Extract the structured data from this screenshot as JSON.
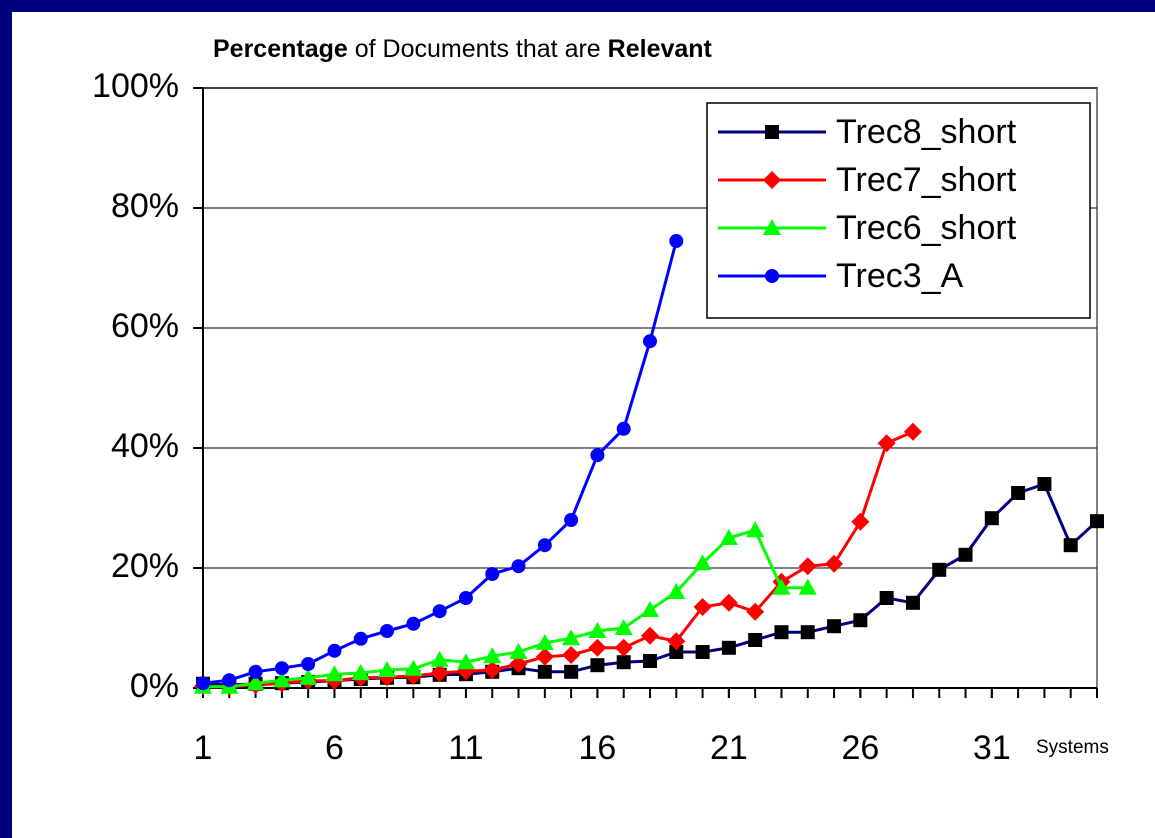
{
  "chart_data": {
    "type": "line",
    "title": [
      "Percentage",
      "of Documents that are",
      "Relevant"
    ],
    "x_label": "Systems",
    "x": [
      1,
      2,
      3,
      4,
      5,
      6,
      7,
      8,
      9,
      10,
      11,
      12,
      13,
      14,
      15,
      16,
      17,
      18,
      19,
      20,
      21,
      22,
      23,
      24,
      25,
      26,
      27,
      28,
      29,
      30,
      31,
      32,
      33,
      34,
      35
    ],
    "xlim": [
      1,
      35
    ],
    "xticks": [
      1,
      6,
      11,
      16,
      21,
      26,
      31
    ],
    "ylim": [
      0,
      100
    ],
    "yticks": [
      {
        "value": 0,
        "label": "0%"
      },
      {
        "value": 20,
        "label": "20%"
      },
      {
        "value": 40,
        "label": "40%"
      },
      {
        "value": 60,
        "label": "60%"
      },
      {
        "value": 80,
        "label": "80%"
      },
      {
        "value": 100,
        "label": "100%"
      }
    ],
    "grid": true,
    "legend": "top right",
    "series": [
      {
        "name": "Trec8_short",
        "color": "#000080",
        "marker": "square",
        "marker_color": "#000000",
        "values": [
          0.7,
          0.5,
          0.7,
          0.8,
          1.0,
          1.2,
          1.5,
          1.7,
          1.8,
          2.2,
          2.3,
          2.7,
          3.3,
          2.7,
          2.7,
          3.8,
          4.3,
          4.5,
          6.0,
          6.0,
          6.7,
          8.0,
          9.3,
          9.3,
          10.3,
          11.3,
          15.0,
          14.2,
          19.7,
          22.2,
          28.3,
          32.5,
          34.0,
          23.8,
          27.8
        ]
      },
      {
        "name": "Trec7_short",
        "color": "#ff0000",
        "marker": "diamond",
        "marker_color": "#ff0000",
        "values": [
          0.3,
          0.2,
          0.5,
          0.8,
          1.2,
          1.2,
          1.7,
          1.8,
          2.0,
          2.5,
          2.8,
          3.0,
          4.0,
          5.2,
          5.5,
          6.7,
          6.7,
          8.7,
          7.8,
          13.5,
          14.2,
          12.7,
          17.7,
          20.3,
          20.7,
          27.7,
          40.8,
          42.7,
          null,
          null,
          null,
          null,
          null,
          null,
          null
        ]
      },
      {
        "name": "Trec6_short",
        "color": "#00ff00",
        "marker": "triangle",
        "marker_color": "#00ff00",
        "values": [
          0.2,
          0.2,
          0.8,
          1.3,
          1.7,
          2.3,
          2.5,
          3.0,
          3.2,
          4.7,
          4.3,
          5.3,
          6.0,
          7.5,
          8.3,
          9.5,
          10.0,
          13.0,
          16.0,
          20.8,
          25.0,
          26.3,
          16.7,
          16.7,
          null,
          null,
          null,
          null,
          null,
          null,
          null,
          null,
          null,
          null,
          null
        ]
      },
      {
        "name": "Trec3_A",
        "color": "#0000ff",
        "marker": "circle",
        "marker_color": "#0000ff",
        "values": [
          0.8,
          1.3,
          2.7,
          3.3,
          4.0,
          6.2,
          8.2,
          9.5,
          10.7,
          12.8,
          15.0,
          19.0,
          20.3,
          23.8,
          28.0,
          38.8,
          43.2,
          57.8,
          74.5,
          null,
          null,
          null,
          null,
          null,
          null,
          null,
          null,
          null,
          null,
          null,
          null,
          null,
          null,
          null,
          null
        ]
      }
    ]
  }
}
